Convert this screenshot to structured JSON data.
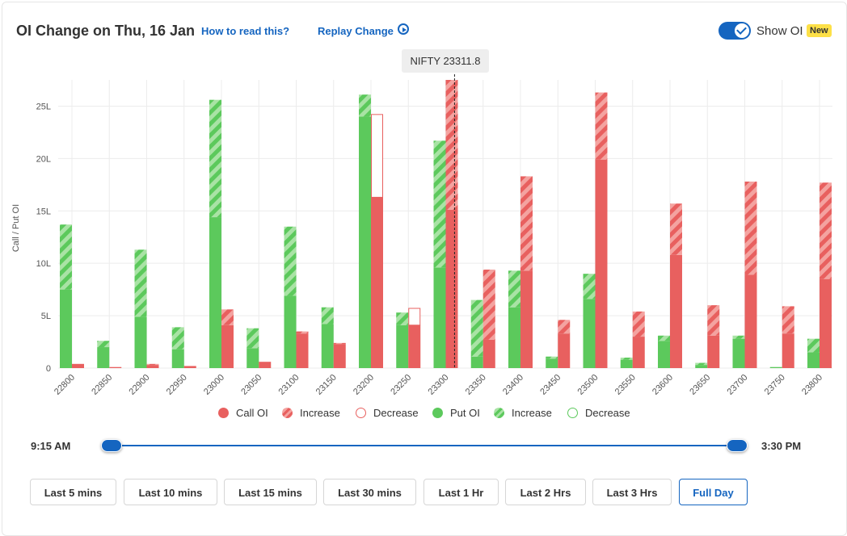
{
  "header": {
    "title": "OI Change on Thu, 16 Jan",
    "how_to_read": "How to read this?",
    "replay": "Replay Change",
    "toggle_label": "Show OI",
    "new_badge": "New"
  },
  "tooltip": {
    "text": "NIFTY 23311.8"
  },
  "colors": {
    "call": "#e8605f",
    "call_light": "#f4a3a0",
    "put": "#5cc95c",
    "put_light": "#a9e3a5",
    "accent": "#1565c0"
  },
  "chart_data": {
    "type": "bar",
    "ylabel": "Call / Put OI",
    "ylim": [
      0,
      27.5
    ],
    "y_ticks": [
      0,
      5,
      10,
      15,
      20,
      25
    ],
    "y_tick_labels": [
      "0",
      "5L",
      "10L",
      "15L",
      "20L",
      "25L"
    ],
    "grid": true,
    "spot_marker": 23311.8,
    "categories": [
      "22800",
      "22850",
      "22900",
      "22950",
      "23000",
      "23050",
      "23100",
      "23150",
      "23200",
      "23250",
      "23300",
      "23350",
      "23400",
      "23450",
      "23500",
      "23550",
      "23600",
      "23650",
      "23700",
      "23750",
      "23800"
    ],
    "series": [
      {
        "name": "Put OI",
        "values": [
          7.5,
          2.0,
          4.9,
          1.8,
          14.4,
          1.9,
          6.9,
          4.2,
          24.0,
          4.1,
          9.6,
          1.1,
          5.8,
          0.9,
          6.6,
          0.8,
          2.6,
          0.3,
          2.8,
          0.1,
          1.5
        ]
      },
      {
        "name": "Put Increase",
        "values": [
          6.2,
          0.6,
          6.4,
          2.1,
          11.2,
          1.9,
          6.6,
          1.6,
          2.1,
          1.2,
          12.1,
          5.4,
          3.5,
          0.2,
          2.4,
          0.2,
          0.5,
          0.2,
          0.3,
          0.0,
          1.3
        ]
      },
      {
        "name": "Put Decrease",
        "values": [
          0,
          0,
          0,
          0,
          0,
          0,
          0,
          0,
          0,
          0,
          0,
          0,
          0,
          0,
          0,
          0,
          0,
          0,
          0,
          0,
          0
        ]
      },
      {
        "name": "Call OI",
        "values": [
          0.4,
          0.1,
          0.3,
          0.2,
          4.1,
          0.6,
          3.3,
          2.3,
          16.3,
          4.1,
          15.1,
          2.7,
          9.3,
          3.3,
          19.9,
          3.0,
          10.8,
          3.1,
          8.9,
          3.3,
          8.5
        ]
      },
      {
        "name": "Call Increase",
        "values": [
          0.0,
          0.0,
          0.1,
          0.0,
          1.5,
          0.0,
          0.2,
          0.1,
          0,
          0,
          12.4,
          6.7,
          9.0,
          1.3,
          6.4,
          2.4,
          4.9,
          2.9,
          8.9,
          2.6,
          9.2
        ]
      },
      {
        "name": "Call Decrease",
        "values": [
          0,
          0,
          0,
          0,
          0,
          0,
          0,
          0,
          7.9,
          1.6,
          0,
          0,
          0,
          0,
          0,
          0,
          0,
          0,
          0,
          0,
          0
        ]
      }
    ]
  },
  "legend": {
    "items": [
      {
        "label": "Call OI",
        "style": "call-solid"
      },
      {
        "label": "Increase",
        "style": "call-hatch"
      },
      {
        "label": "Decrease",
        "style": "call-outline"
      },
      {
        "label": "Put OI",
        "style": "put-solid"
      },
      {
        "label": "Increase",
        "style": "put-hatch"
      },
      {
        "label": "Decrease",
        "style": "put-outline"
      }
    ]
  },
  "timeline": {
    "start": "9:15 AM",
    "end": "3:30 PM"
  },
  "ranges": [
    "Last 5 mins",
    "Last 10 mins",
    "Last 15 mins",
    "Last 30 mins",
    "Last 1 Hr",
    "Last 2 Hrs",
    "Last 3 Hrs",
    "Full Day"
  ],
  "active_range": "Full Day"
}
